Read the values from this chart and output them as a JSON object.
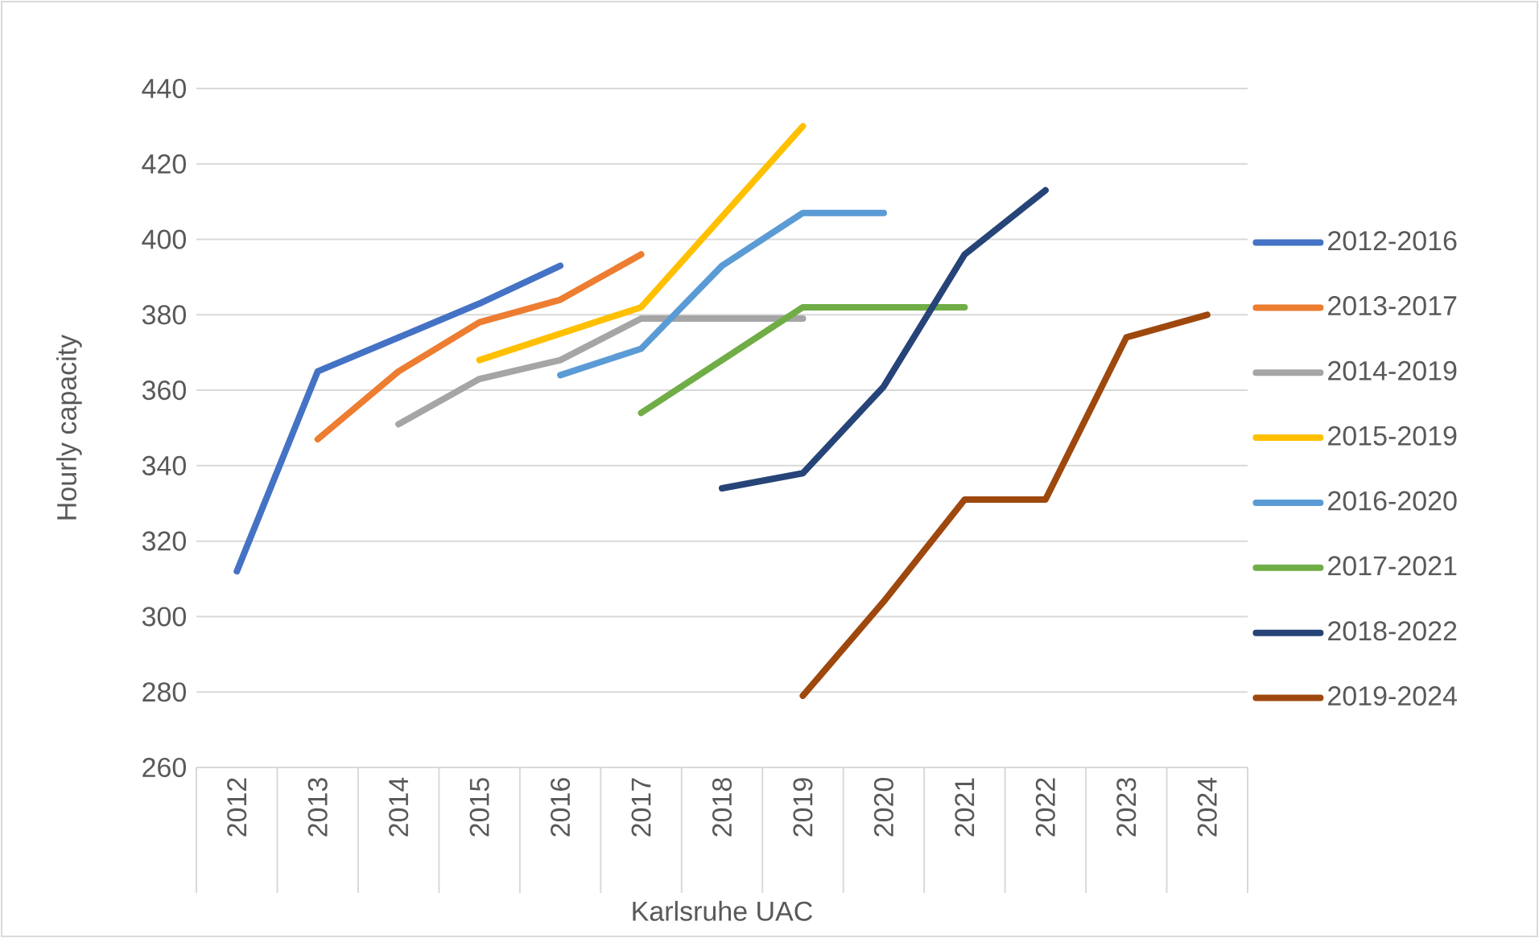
{
  "chart_data": {
    "type": "line",
    "xlabel": "Karlsruhe UAC",
    "ylabel": "Hourly capacity",
    "categories": [
      "2012",
      "2013",
      "2014",
      "2015",
      "2016",
      "2017",
      "2018",
      "2019",
      "2020",
      "2021",
      "2022",
      "2023",
      "2024"
    ],
    "ylim": [
      260,
      440
    ],
    "yticks": [
      260,
      280,
      300,
      320,
      340,
      360,
      380,
      400,
      420,
      440
    ],
    "grid": "y",
    "legend": "right",
    "marker": "none",
    "line_style": "solid",
    "series": [
      {
        "name": "2012-2016",
        "color": "#4472c4",
        "values": [
          312,
          365,
          374,
          383,
          393,
          null,
          null,
          null,
          null,
          null,
          null,
          null,
          null
        ]
      },
      {
        "name": "2013-2017",
        "color": "#ed7d31",
        "values": [
          null,
          347,
          365,
          378,
          384,
          396,
          null,
          null,
          null,
          null,
          null,
          null,
          null
        ]
      },
      {
        "name": "2014-2019",
        "color": "#a5a5a5",
        "values": [
          null,
          null,
          351,
          363,
          368,
          379,
          379,
          379,
          null,
          null,
          null,
          null,
          null
        ]
      },
      {
        "name": "2015-2019",
        "color": "#ffc000",
        "values": [
          null,
          null,
          null,
          368,
          375,
          382,
          406,
          430,
          null,
          null,
          null,
          null,
          null
        ]
      },
      {
        "name": "2016-2020",
        "color": "#5b9bd5",
        "values": [
          null,
          null,
          null,
          null,
          364,
          371,
          393,
          407,
          407,
          null,
          null,
          null,
          null
        ]
      },
      {
        "name": "2017-2021",
        "color": "#70ad47",
        "values": [
          null,
          null,
          null,
          null,
          null,
          354,
          368,
          382,
          382,
          382,
          null,
          null,
          null
        ]
      },
      {
        "name": "2018-2022",
        "color": "#264478",
        "values": [
          null,
          null,
          null,
          null,
          null,
          null,
          334,
          338,
          361,
          396,
          413,
          null,
          null
        ]
      },
      {
        "name": "2019-2024",
        "color": "#9e480e",
        "values": [
          null,
          null,
          null,
          null,
          null,
          null,
          null,
          279,
          304,
          331,
          331,
          374,
          380
        ]
      }
    ]
  }
}
